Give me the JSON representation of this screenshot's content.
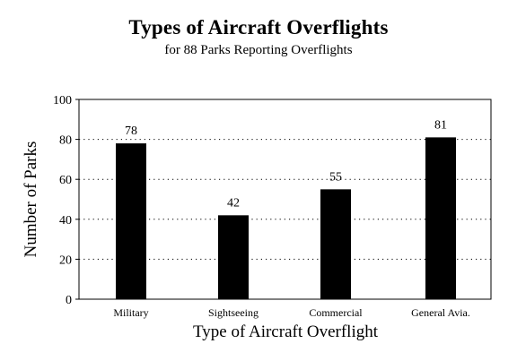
{
  "chart_data": {
    "type": "bar",
    "title": "Types of Aircraft Overflights",
    "subtitle": "for 88 Parks Reporting Overflights",
    "xlabel": "Type of Aircraft Overflight",
    "ylabel": "Number of Parks",
    "categories": [
      "Military",
      "Sightseeing",
      "Commercial",
      "General Avia."
    ],
    "values": [
      78,
      42,
      55,
      81
    ],
    "data_labels": [
      "78",
      "42",
      "55",
      "81"
    ],
    "ylim": [
      0,
      100
    ],
    "yticks": [
      0,
      20,
      40,
      60,
      80,
      100
    ],
    "grid": "horizontal dotted",
    "bar_color": "#000000"
  }
}
